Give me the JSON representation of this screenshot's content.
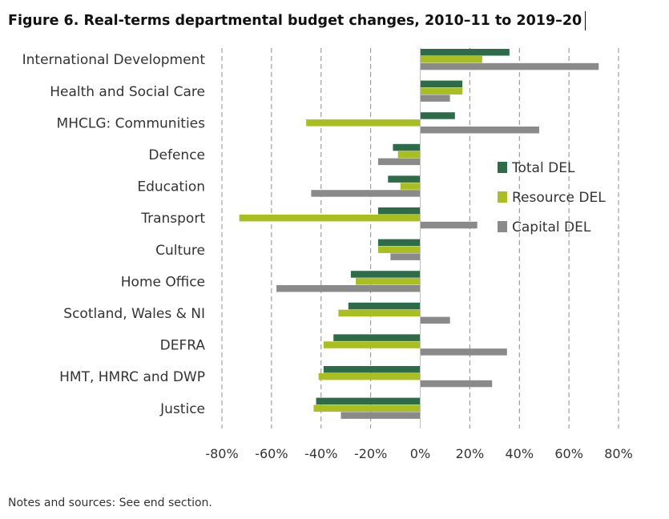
{
  "figure": {
    "title": "Figure 6. Real-terms departmental budget changes, 2010–11 to 2019–20",
    "notes": "Notes and sources: See end section."
  },
  "chart_data": {
    "type": "bar",
    "orientation": "horizontal",
    "title": "Figure 6. Real-terms departmental budget changes, 2010–11 to 2019–20",
    "categories": [
      "International Development",
      "Health and Social Care",
      "MHCLG: Communities",
      "Defence",
      "Education",
      "Transport",
      "Culture",
      "Home Office",
      "Scotland, Wales & NI",
      "DEFRA",
      "HMT, HMRC and DWP",
      "Justice"
    ],
    "series": [
      {
        "name": "Total DEL",
        "color": "#2e6b48",
        "values": [
          36,
          17,
          14,
          -11,
          -13,
          -17,
          -17,
          -28,
          -29,
          -35,
          -39,
          -42
        ]
      },
      {
        "name": "Resource DEL",
        "color": "#a9bf1f",
        "values": [
          25,
          17,
          -46,
          -9,
          -8,
          -73,
          -17,
          -26,
          -33,
          -39,
          -41,
          -43
        ]
      },
      {
        "name": "Capital DEL",
        "color": "#8a8a8a",
        "values": [
          72,
          12,
          48,
          -17,
          -44,
          23,
          -12,
          -58,
          12,
          35,
          29,
          -32
        ]
      }
    ],
    "xticks": [
      "-80%",
      "-60%",
      "-40%",
      "-20%",
      "0%",
      "20%",
      "40%",
      "60%",
      "80%"
    ],
    "xlim": [
      -80,
      80
    ],
    "xlabel": "",
    "ylabel": "",
    "grid": "vertical dashed",
    "legend": "right"
  }
}
